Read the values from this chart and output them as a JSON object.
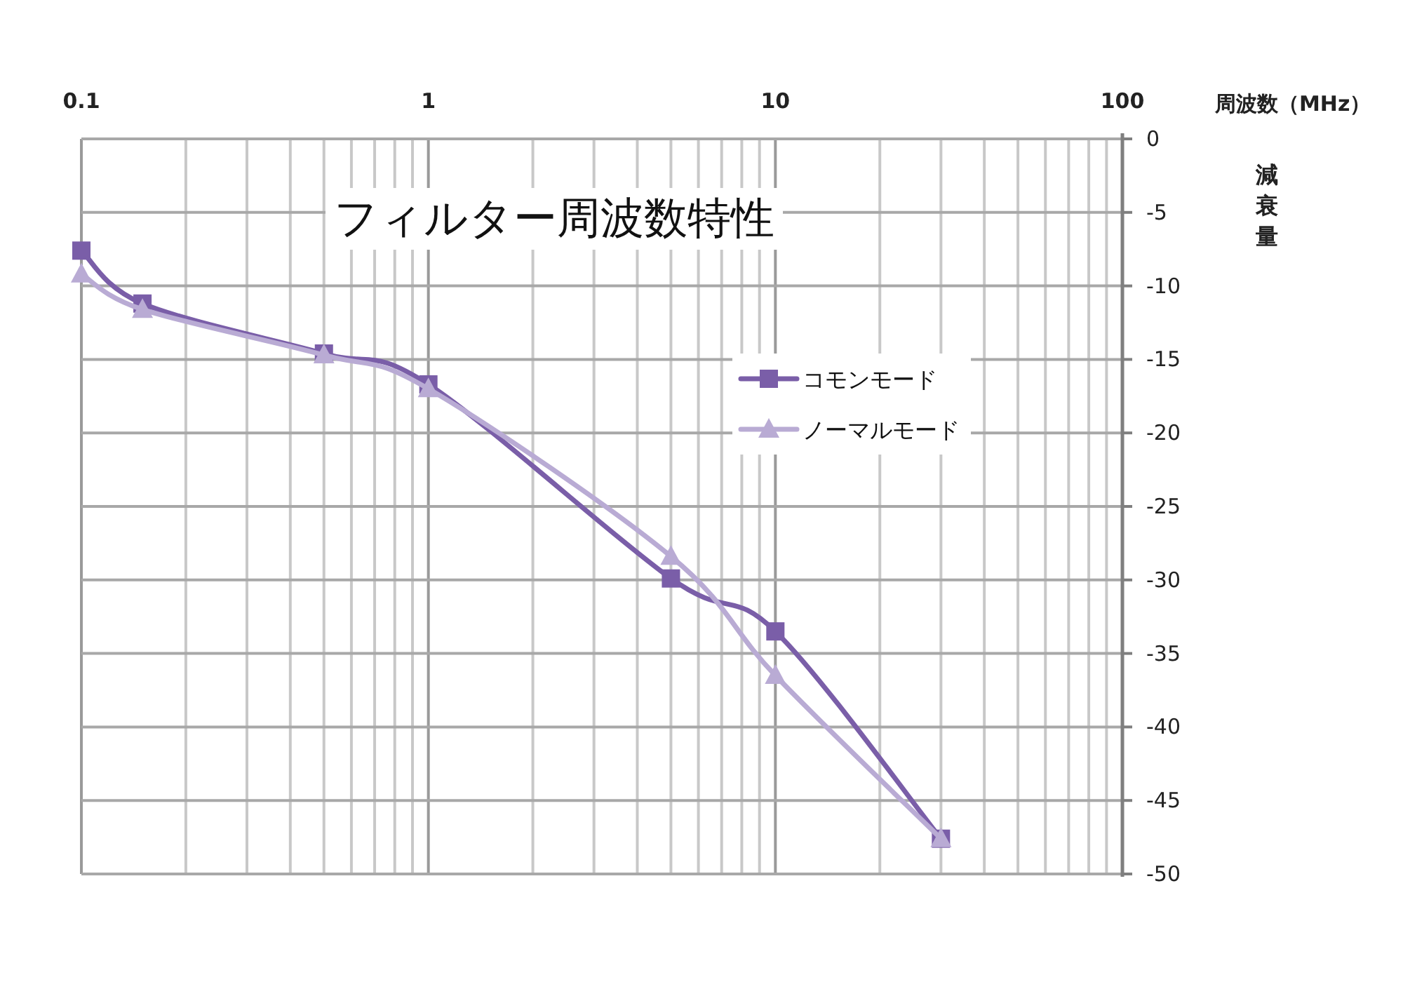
{
  "chart_data": {
    "type": "line",
    "title": "フィルター周波数特性",
    "xlabel": "周波数（MHz）",
    "ylabel": "減衰量",
    "x": [
      0.1,
      0.15,
      0.5,
      1,
      5,
      10,
      30
    ],
    "series": [
      {
        "name": "コモンモード",
        "color": "#7a5ea8",
        "marker": "square",
        "values": [
          -7.6,
          -11.2,
          -14.6,
          -16.7,
          -29.9,
          -33.5,
          -47.6
        ]
      },
      {
        "name": "ノーマルモード",
        "color": "#b9abd4",
        "marker": "triangle",
        "values": [
          -9.2,
          -11.6,
          -14.7,
          -17.0,
          -28.4,
          -36.5,
          -47.6
        ]
      }
    ],
    "xlim": [
      0.1,
      100
    ],
    "xticks": [
      0.1,
      {
        "value": 0.2,
        "label": null
      },
      {
        "value": 0.3,
        "label": null
      },
      {
        "value": 0.4,
        "label": null
      },
      {
        "value": 0.5,
        "label": null
      },
      {
        "value": 0.6,
        "label": null
      },
      {
        "value": 0.7,
        "label": null
      },
      {
        "value": 0.8,
        "label": null
      },
      {
        "value": 0.9,
        "label": null
      },
      1,
      {
        "value": 2,
        "label": null
      },
      {
        "value": 3,
        "label": null
      },
      {
        "value": 4,
        "label": null
      },
      {
        "value": 5,
        "label": null
      },
      {
        "value": 6,
        "label": null
      },
      {
        "value": 7,
        "label": null
      },
      {
        "value": 8,
        "label": null
      },
      {
        "value": 9,
        "label": null
      },
      10,
      {
        "value": 20,
        "label": null
      },
      {
        "value": 30,
        "label": null
      },
      {
        "value": 40,
        "label": null
      },
      {
        "value": 50,
        "label": null
      },
      {
        "value": 60,
        "label": null
      },
      {
        "value": 70,
        "label": null
      },
      {
        "value": 80,
        "label": null
      },
      {
        "value": 90,
        "label": null
      },
      100
    ],
    "ylim": [
      -50,
      0
    ],
    "yticks": [
      0,
      -5,
      -10,
      -15,
      -20,
      -25,
      -30,
      -35,
      -40,
      -45,
      -50
    ],
    "log": "x",
    "grid": true,
    "legend": "right",
    "line_style": "solid"
  }
}
